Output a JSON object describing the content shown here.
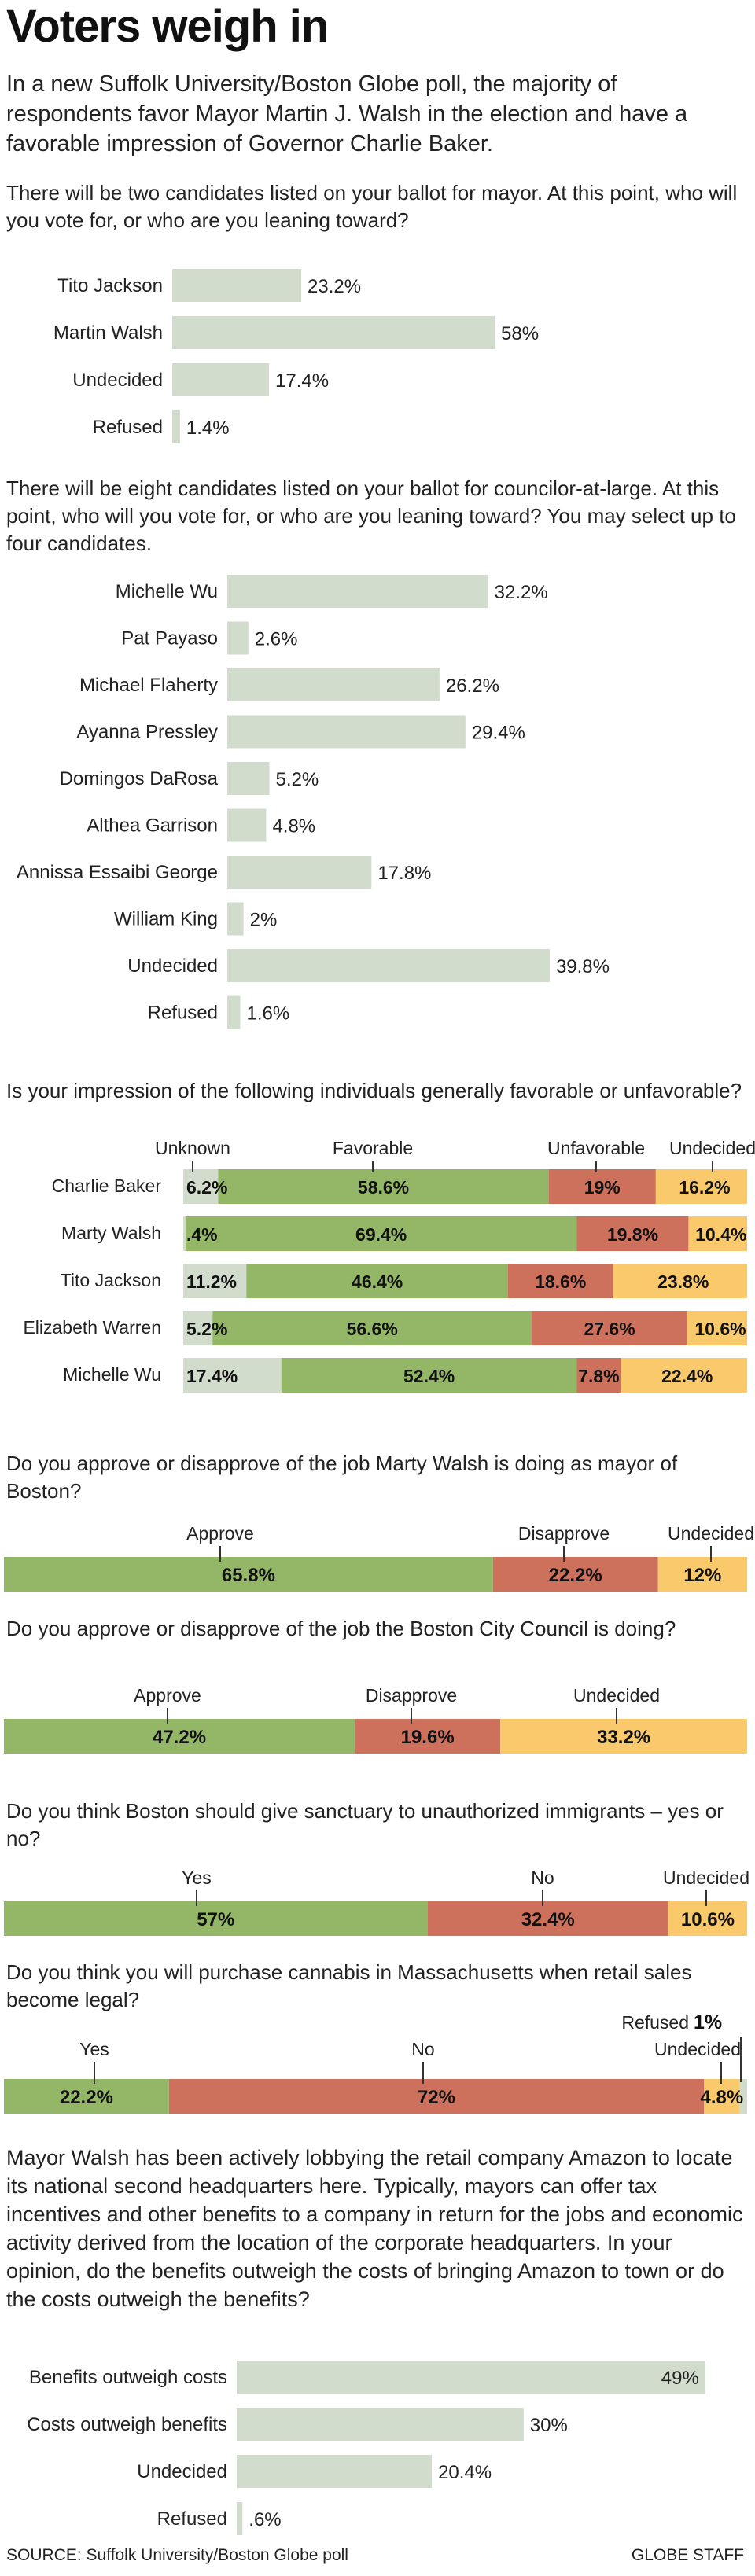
{
  "header": {
    "title": "Voters weigh in",
    "subtitle": "In a new Suffolk University/Boston Globe poll, the majority of respondents favor Mayor Martin J. Walsh in the election and have a favorable impression of Governor Charlie Baker."
  },
  "questions": {
    "q1": "There will be two candidates listed on your ballot for mayor. At this point, who will you vote for, or who are you leaning toward?",
    "q2": "There will be eight candidates listed on your ballot for councilor-at-large. At this point, who will you vote for, or who are you leaning toward? You may select up to four candidates.",
    "q3": "Is your impression of the following individuals generally favorable or unfavorable?",
    "q4": "Do you approve or disapprove of the job Marty Walsh is doing as mayor of Boston?",
    "q5": "Do you approve or disapprove of the job the Boston City Council is doing?",
    "q6": "Do you think Boston should give sanctuary to unauthorized immigrants – yes or no?",
    "q7": "Do you think you will purchase cannabis in Massachusetts when retail sales become legal?",
    "q8": "Mayor Walsh has been actively lobbying the retail company Amazon to locate its national second headquarters here. Typically, mayors can offer tax incentives and other benefits to a company in return for the jobs and economic activity derived from the location of the corporate headquarters. In your opinion, do the benefits outweigh the costs of bringing Amazon to town or do the costs outweigh the benefits?"
  },
  "footer": {
    "source": "SOURCE: Suffolk University/Boston Globe poll",
    "credit": "GLOBE STAFF"
  },
  "colors": {
    "bar": "#d2dccd",
    "green": "#93b767",
    "red": "#cd705c",
    "yellow": "#f9c96c",
    "gray": "#d2dccd"
  },
  "chart_data": [
    {
      "type": "bar",
      "id": "mayor",
      "categories": [
        "Tito Jackson",
        "Martin Walsh",
        "Undecided",
        "Refused"
      ],
      "values": [
        23.2,
        58,
        17.4,
        1.4
      ],
      "labels": [
        "23.2%",
        "58%",
        "17.4%",
        "1.4%"
      ]
    },
    {
      "type": "bar",
      "id": "council",
      "categories": [
        "Michelle Wu",
        "Pat Payaso",
        "Michael Flaherty",
        "Ayanna Pressley",
        "Domingos DaRosa",
        "Althea Garrison",
        "Annissa Essaibi George",
        "William King",
        "Undecided",
        "Refused"
      ],
      "values": [
        32.2,
        2.6,
        26.2,
        29.4,
        5.2,
        4.8,
        17.8,
        2,
        39.8,
        1.6
      ],
      "labels": [
        "32.2%",
        "2.6%",
        "26.2%",
        "29.4%",
        "5.2%",
        "4.8%",
        "17.8%",
        "2%",
        "39.8%",
        "1.6%"
      ]
    },
    {
      "type": "bar",
      "id": "impression",
      "stacked": true,
      "headers": [
        "Unknown",
        "Favorable",
        "Unfavorable",
        "Undecided"
      ],
      "categories": [
        "Charlie Baker",
        "Marty Walsh",
        "Tito Jackson",
        "Elizabeth Warren",
        "Michelle Wu"
      ],
      "series": [
        {
          "name": "Unknown",
          "values": [
            6.2,
            0.4,
            11.2,
            5.2,
            17.4
          ],
          "labels": [
            "6.2%",
            ".4%",
            "11.2%",
            "5.2%",
            "17.4%"
          ]
        },
        {
          "name": "Favorable",
          "values": [
            58.6,
            69.4,
            46.4,
            56.6,
            52.4
          ],
          "labels": [
            "58.6%",
            "69.4%",
            "46.4%",
            "56.6%",
            "52.4%"
          ]
        },
        {
          "name": "Unfavorable",
          "values": [
            19,
            19.8,
            18.6,
            27.6,
            7.8
          ],
          "labels": [
            "19%",
            "19.8%",
            "18.6%",
            "27.6%",
            "7.8%"
          ]
        },
        {
          "name": "Undecided",
          "values": [
            16.2,
            10.4,
            23.8,
            10.6,
            22.4
          ],
          "labels": [
            "16.2%",
            "10.4%",
            "23.8%",
            "10.6%",
            "22.4%"
          ]
        }
      ]
    },
    {
      "type": "bar",
      "id": "walsh_job",
      "stacked": true,
      "segments": [
        "Approve",
        "Disapprove",
        "Undecided"
      ],
      "values": [
        65.8,
        22.2,
        12
      ],
      "labels": [
        "65.8%",
        "22.2%",
        "12%"
      ]
    },
    {
      "type": "bar",
      "id": "council_job",
      "stacked": true,
      "segments": [
        "Approve",
        "Disapprove",
        "Undecided"
      ],
      "values": [
        47.2,
        19.6,
        33.2
      ],
      "labels": [
        "47.2%",
        "19.6%",
        "33.2%"
      ]
    },
    {
      "type": "bar",
      "id": "sanctuary",
      "stacked": true,
      "segments": [
        "Yes",
        "No",
        "Undecided"
      ],
      "values": [
        57,
        32.4,
        10.6
      ],
      "labels": [
        "57%",
        "32.4%",
        "10.6%"
      ]
    },
    {
      "type": "bar",
      "id": "cannabis",
      "stacked": true,
      "segments": [
        "Yes",
        "No",
        "Undecided",
        "Refused"
      ],
      "values": [
        22.2,
        72,
        4.8,
        1
      ],
      "labels": [
        "22.2%",
        "72%",
        "4.8%",
        "1%"
      ]
    },
    {
      "type": "bar",
      "id": "amazon",
      "categories": [
        "Benefits outweigh costs",
        "Costs outweigh benefits",
        "Undecided",
        "Refused"
      ],
      "values": [
        49,
        30,
        20.4,
        0.6
      ],
      "labels": [
        "49%",
        "30%",
        "20.4%",
        ".6%"
      ]
    }
  ]
}
